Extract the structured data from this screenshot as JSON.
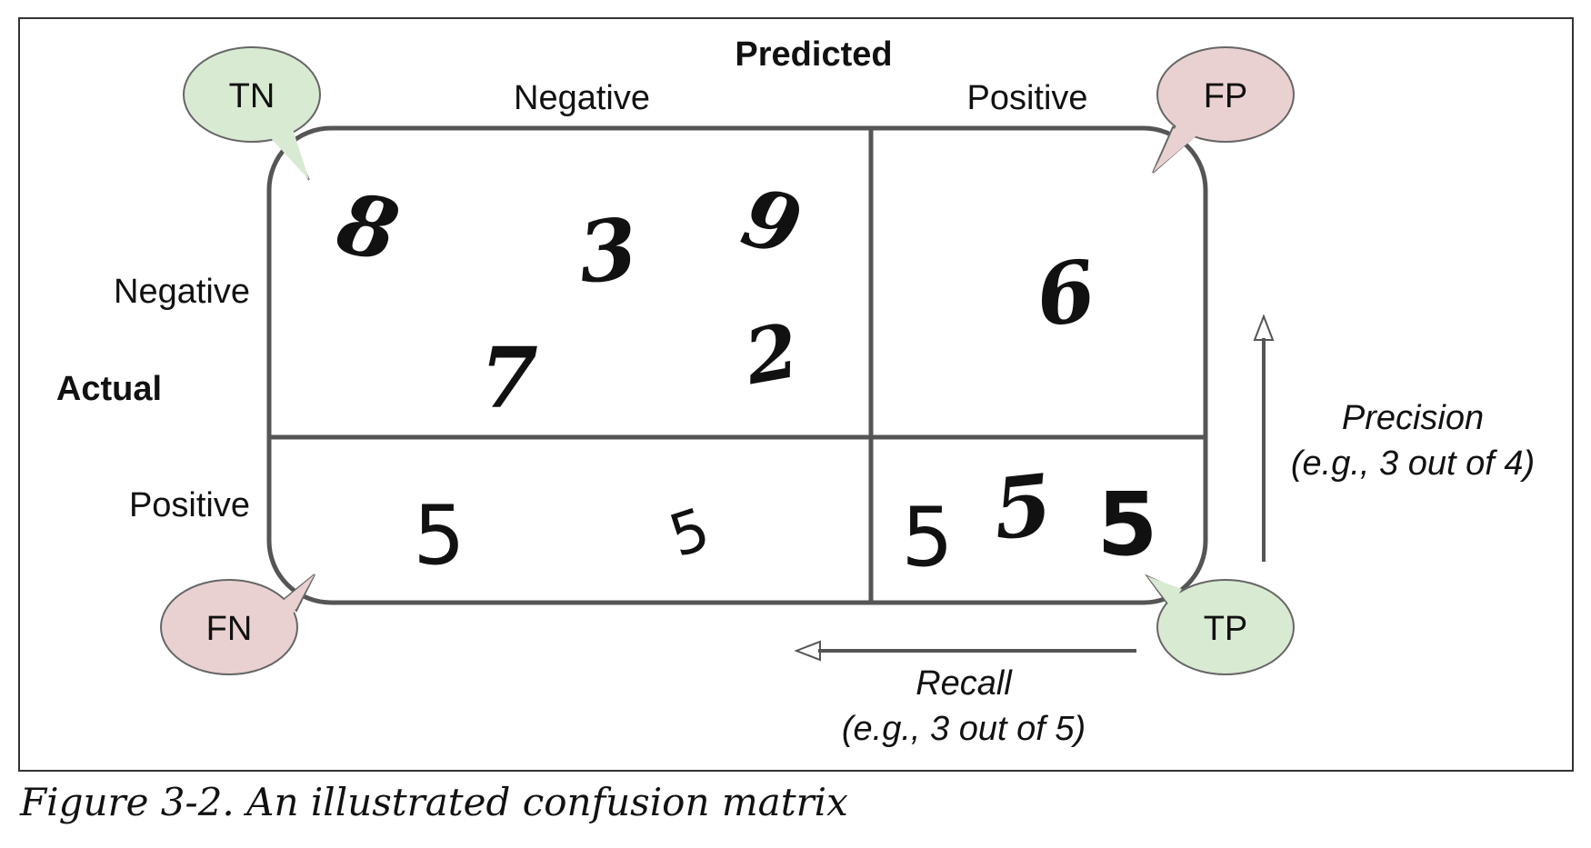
{
  "figure": {
    "predicted_label": "Predicted",
    "actual_label": "Actual",
    "columns": {
      "negative": "Negative",
      "positive": "Positive"
    },
    "rows": {
      "negative": "Negative",
      "positive": "Positive"
    },
    "bubbles": {
      "tn": {
        "label": "TN",
        "color": "#d9ead3"
      },
      "fp": {
        "label": "FP",
        "color": "#ead1d1"
      },
      "fn": {
        "label": "FN",
        "color": "#ead1d1"
      },
      "tp": {
        "label": "TP",
        "color": "#d9ead3"
      }
    },
    "cells": {
      "tn_digits": [
        "8",
        "3",
        "9",
        "7",
        "2"
      ],
      "fp_digits": [
        "6"
      ],
      "fn_digits": [
        "5",
        "5"
      ],
      "tp_digits": [
        "5",
        "5",
        "5"
      ]
    },
    "precision": {
      "title": "Precision",
      "example": "(e.g., 3 out of 4)"
    },
    "recall": {
      "title": "Recall",
      "example": "(e.g., 3 out of 5)"
    },
    "line_color": "#555555"
  },
  "caption": "Figure 3-2. An illustrated confusion matrix"
}
